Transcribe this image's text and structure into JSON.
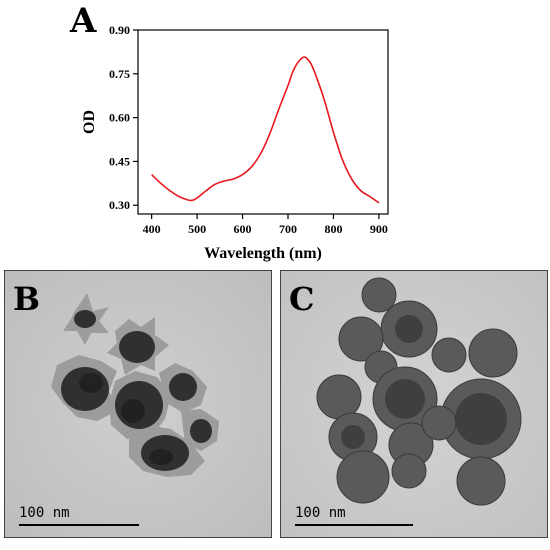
{
  "panels": {
    "a": {
      "letter": "A"
    },
    "b": {
      "letter": "B",
      "scale_label": "100 nm"
    },
    "c": {
      "letter": "C",
      "scale_label": "100 nm"
    }
  },
  "chart_data": {
    "type": "line",
    "xlabel": "Wavelength (nm)",
    "ylabel": "OD",
    "xlim": [
      370,
      920
    ],
    "ylim": [
      0.27,
      0.9
    ],
    "x_ticks": [
      400,
      500,
      600,
      700,
      800,
      900
    ],
    "y_ticks": [
      0.3,
      0.45,
      0.6,
      0.75,
      0.9
    ],
    "y_tick_labels": [
      "0.30",
      "0.45",
      "0.60",
      "0.75",
      "0.90"
    ],
    "line_color": "#e8191e",
    "grid": false,
    "series": [
      {
        "x": [
          400,
          420,
          440,
          460,
          480,
          490,
          500,
          520,
          540,
          560,
          580,
          600,
          620,
          640,
          660,
          680,
          700,
          710,
          720,
          730,
          735,
          740,
          750,
          760,
          780,
          800,
          820,
          840,
          860,
          880,
          900
        ],
        "y": [
          0.405,
          0.375,
          0.35,
          0.33,
          0.318,
          0.317,
          0.325,
          0.35,
          0.372,
          0.383,
          0.39,
          0.405,
          0.432,
          0.477,
          0.545,
          0.63,
          0.71,
          0.755,
          0.785,
          0.803,
          0.807,
          0.805,
          0.786,
          0.75,
          0.66,
          0.55,
          0.455,
          0.39,
          0.35,
          0.33,
          0.308
        ]
      }
    ]
  }
}
